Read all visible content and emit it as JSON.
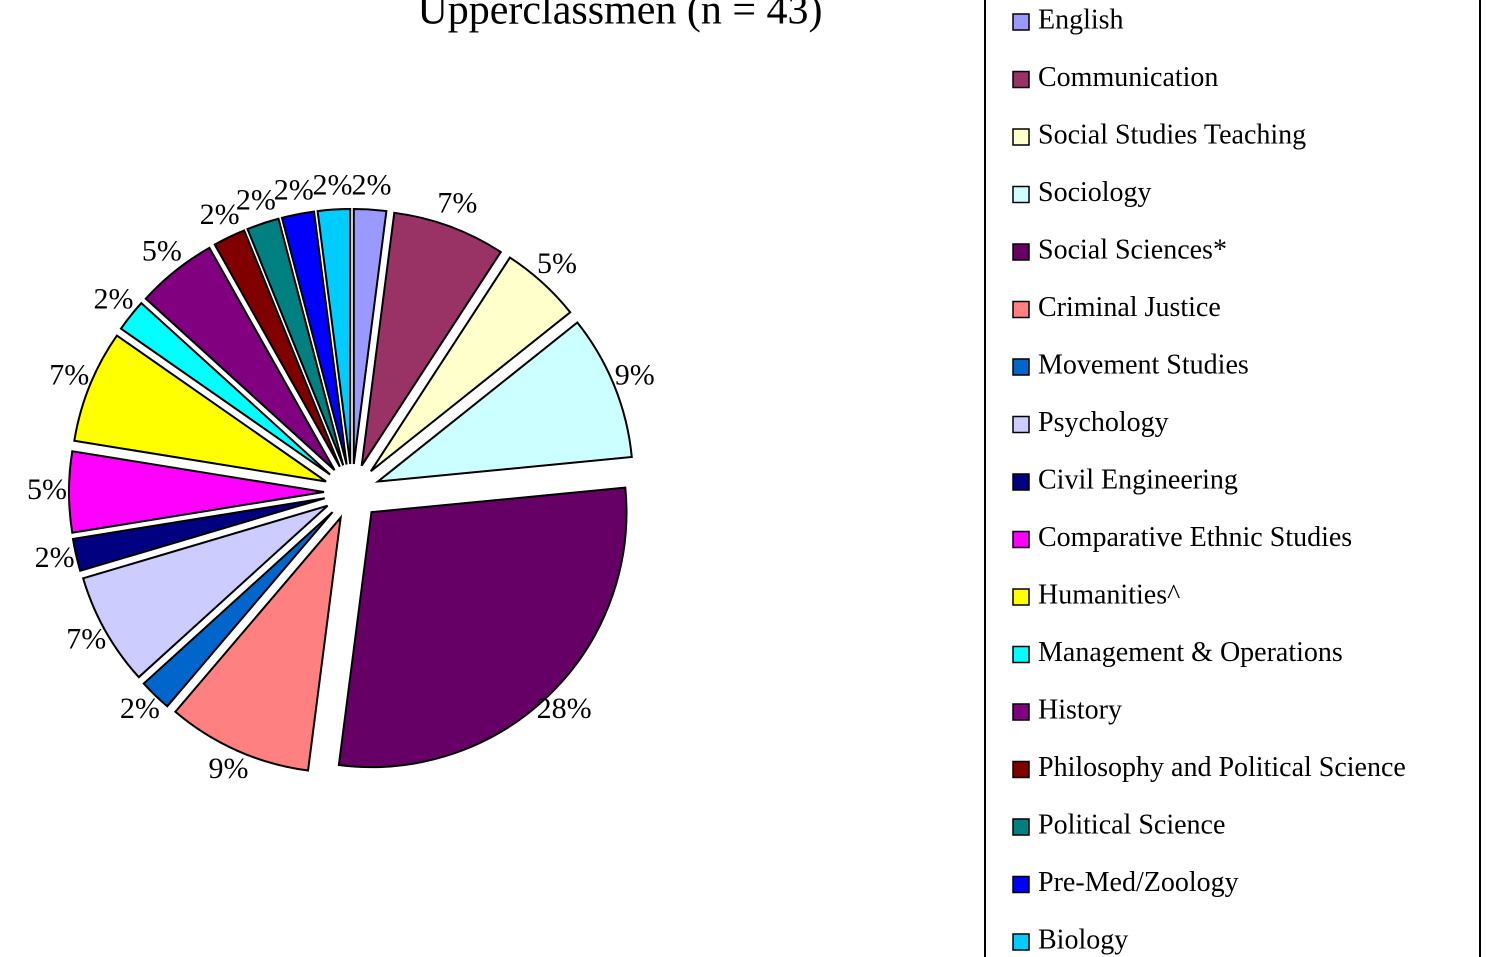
{
  "chart_data": {
    "type": "pie",
    "title": "Upperclassmen (n = 43)",
    "categories": [
      "English",
      "Communication",
      "Social Studies Teaching",
      "Sociology",
      "Social Sciences*",
      "Criminal Justice",
      "Movement Studies",
      "Psychology",
      "Civil Engineering",
      "Comparative Ethnic Studies",
      "Humanities^",
      "Management & Operations",
      "History",
      "Philosophy and Political Science",
      "Political Science",
      "Pre-Med/Zoology",
      "Biology"
    ],
    "values": [
      2,
      7,
      5,
      9,
      28,
      9,
      2,
      7,
      2,
      5,
      7,
      2,
      5,
      2,
      2,
      2,
      2
    ],
    "value_labels": [
      "2%",
      "7%",
      "5%",
      "9%",
      "28%",
      "9%",
      "2%",
      "7%",
      "2%",
      "5%",
      "7%",
      "2%",
      "5%",
      "2%",
      "2%",
      "2%",
      "2%"
    ],
    "colors": [
      "#9999ff",
      "#993366",
      "#ffffcc",
      "#ccffff",
      "#660066",
      "#ff8080",
      "#0066cc",
      "#ccccff",
      "#000080",
      "#ff00ff",
      "#ffff00",
      "#00ffff",
      "#800080",
      "#800000",
      "#008080",
      "#0000ff",
      "#00ccff"
    ],
    "legend": "right"
  }
}
